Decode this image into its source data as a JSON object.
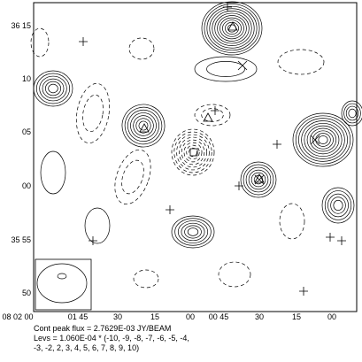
{
  "plot": {
    "y_ticks": [
      "36 15",
      "10",
      "05",
      "00",
      "35 55",
      "50"
    ],
    "x_ticks": [
      "08 02 00",
      "01 45",
      "30",
      "15",
      "00",
      "00 45",
      "30",
      "15",
      "00"
    ]
  },
  "caption": {
    "peak": "Cont peak flux =  2.7629E-03 JY/BEAM",
    "levels_1": "Levs = 1.060E-04 * (-10, -9, -8, -7, -6, -5, -4,",
    "levels_2": "-3, -2, 2, 3, 4, 5, 6, 7, 8, 9, 10)"
  }
}
